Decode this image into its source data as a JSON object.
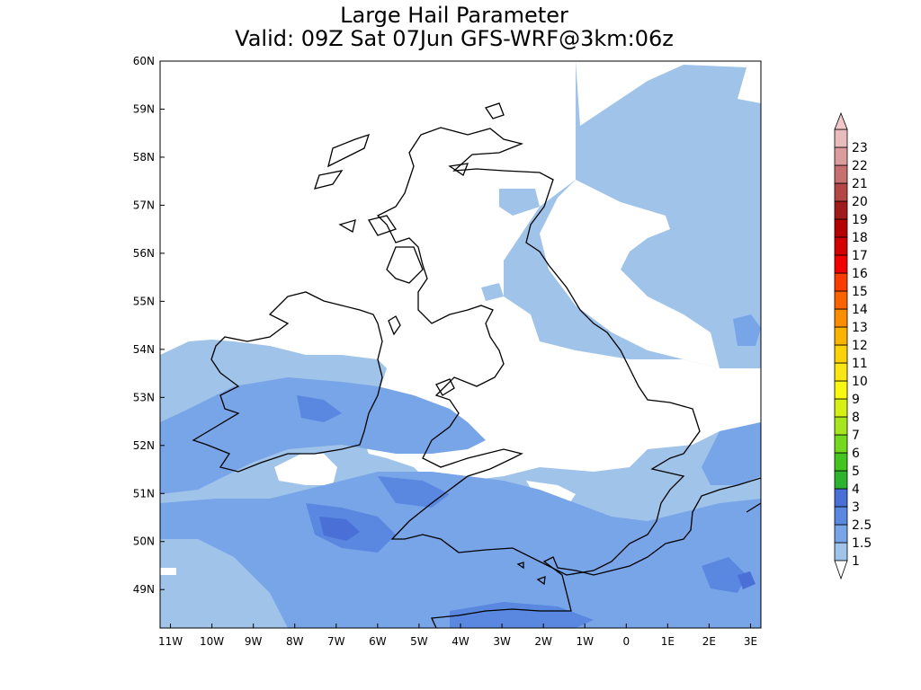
{
  "title": "Large Hail Parameter",
  "subtitle": "Valid: 09Z Sat 07Jun GFS-WRF@3km:06z",
  "map": {
    "lon_range": [
      -11.25,
      3.25
    ],
    "lat_range": [
      48.2,
      60
    ],
    "lat_labels": [
      "60N",
      "59N",
      "58N",
      "57N",
      "56N",
      "55N",
      "54N",
      "53N",
      "52N",
      "51N",
      "50N",
      "49N"
    ],
    "lat_values": [
      60,
      59,
      58,
      57,
      56,
      55,
      54,
      53,
      52,
      51,
      50,
      49
    ],
    "lon_labels": [
      "11W",
      "10W",
      "9W",
      "8W",
      "7W",
      "6W",
      "5W",
      "4W",
      "3W",
      "2W",
      "1W",
      "0",
      "1E",
      "2E",
      "3E"
    ],
    "lon_values": [
      -11,
      -10,
      -9,
      -8,
      -7,
      -6,
      -5,
      -4,
      -3,
      -2,
      -1,
      0,
      1,
      2,
      3
    ]
  },
  "colorbar": {
    "labels": [
      "1",
      "1.5",
      "2.5",
      "3",
      "4",
      "5",
      "6",
      "7",
      "8",
      "9",
      "10",
      "11",
      "12",
      "13",
      "14",
      "15",
      "16",
      "17",
      "18",
      "19",
      "20",
      "21",
      "22",
      "23"
    ],
    "colors": [
      "#a0c3ea",
      "#78a5e8",
      "#5a87e0",
      "#4a6fd6",
      "#2db32d",
      "#44c41f",
      "#74d81f",
      "#a6e61e",
      "#d6f016",
      "#f8f812",
      "#fae614",
      "#fad20a",
      "#fab400",
      "#fa8c00",
      "#fa6400",
      "#fa3c00",
      "#f00000",
      "#d20000",
      "#b40000",
      "#a01c1c",
      "#b44646",
      "#c87070",
      "#dc9c9c",
      "#e8bcbc"
    ],
    "over_color": "#f0c8c8",
    "under_color": "#ffffff"
  }
}
